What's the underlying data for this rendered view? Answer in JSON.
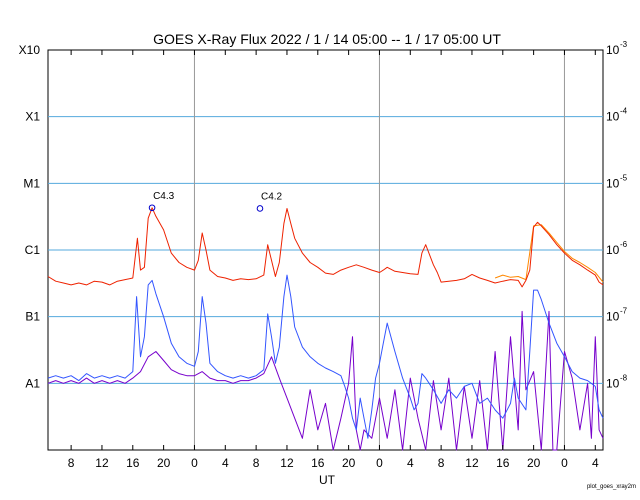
{
  "chart_data": {
    "type": "line",
    "title": "GOES X-Ray Flux   2022  /  1  /  14    05:00 --   1  /  17    05:00    UT",
    "xlabel": "UT",
    "footer_text": "plot_goes_xray2m",
    "x_range_hours": [
      0,
      72
    ],
    "x_tick_labels": [
      "8",
      "12",
      "16",
      "20",
      "0",
      "4",
      "8",
      "12",
      "16",
      "20",
      "0",
      "4",
      "8",
      "12",
      "16",
      "20",
      "0",
      "4"
    ],
    "x_tick_hours": [
      3,
      7,
      11,
      15,
      19,
      23,
      27,
      31,
      35,
      39,
      43,
      47,
      51,
      55,
      59,
      63,
      67,
      71
    ],
    "day_boundaries_hours": [
      19,
      43,
      67
    ],
    "y_scale": "log",
    "y_range": [
      1e-09,
      0.001
    ],
    "left_axis_labels": [
      {
        "label": "X10",
        "value": 0.001
      },
      {
        "label": "X1",
        "value": 0.0001
      },
      {
        "label": "M1",
        "value": 1e-05
      },
      {
        "label": "C1",
        "value": 1e-06
      },
      {
        "label": "B1",
        "value": 1e-07
      },
      {
        "label": "A1",
        "value": 1e-08
      }
    ],
    "right_axis_labels": [
      {
        "base": "10",
        "exp": "-3",
        "value": 0.001
      },
      {
        "base": "10",
        "exp": "-4",
        "value": 0.0001
      },
      {
        "base": "10",
        "exp": "-5",
        "value": 1e-05
      },
      {
        "base": "10",
        "exp": "-6",
        "value": 1e-06
      },
      {
        "base": "10",
        "exp": "-7",
        "value": 1e-07
      },
      {
        "base": "10",
        "exp": "-8",
        "value": 1e-08
      }
    ],
    "flare_annotations": [
      {
        "label": "C4.3",
        "hour": 13.5,
        "value": 4.3e-06
      },
      {
        "label": "C4.2",
        "hour": 27.5,
        "value": 4.2e-06
      }
    ],
    "colors": {
      "long_primary": "#ee2200",
      "long_secondary": "#ff8800",
      "short_primary": "#3355ff",
      "short_secondary": "#7700cc",
      "gridline": "#55aadd",
      "day_line": "#999999",
      "marker": "#0000cc"
    },
    "series": [
      {
        "key": "long_primary",
        "points": [
          [
            0,
            4e-07
          ],
          [
            1,
            3.4e-07
          ],
          [
            2,
            3.2e-07
          ],
          [
            3,
            3e-07
          ],
          [
            4,
            3.2e-07
          ],
          [
            5,
            3e-07
          ],
          [
            6,
            3.4e-07
          ],
          [
            7,
            3.3e-07
          ],
          [
            8,
            3e-07
          ],
          [
            9,
            3.4e-07
          ],
          [
            10,
            3.6e-07
          ],
          [
            11,
            3.8e-07
          ],
          [
            11.6,
            1.5e-06
          ],
          [
            12,
            5e-07
          ],
          [
            12.5,
            5.5e-07
          ],
          [
            13,
            3e-06
          ],
          [
            13.5,
            4.3e-06
          ],
          [
            14,
            3.2e-06
          ],
          [
            15,
            2e-06
          ],
          [
            16,
            9e-07
          ],
          [
            17,
            6.5e-07
          ],
          [
            18,
            5.5e-07
          ],
          [
            19,
            5e-07
          ],
          [
            19.5,
            7e-07
          ],
          [
            20,
            1.8e-06
          ],
          [
            20.5,
            1e-06
          ],
          [
            21,
            5e-07
          ],
          [
            22,
            4e-07
          ],
          [
            23,
            3.8e-07
          ],
          [
            24,
            3.5e-07
          ],
          [
            25,
            3.7e-07
          ],
          [
            26,
            3.6e-07
          ],
          [
            27,
            3.7e-07
          ],
          [
            28,
            4.2e-07
          ],
          [
            28.5,
            1.2e-06
          ],
          [
            29,
            7e-07
          ],
          [
            29.5,
            4e-07
          ],
          [
            30,
            6.5e-07
          ],
          [
            30.6,
            2.5e-06
          ],
          [
            31,
            4.2e-06
          ],
          [
            31.5,
            2.5e-06
          ],
          [
            32,
            1.5e-06
          ],
          [
            33,
            9e-07
          ],
          [
            34,
            6.5e-07
          ],
          [
            35,
            5.5e-07
          ],
          [
            36,
            4.5e-07
          ],
          [
            37,
            4.3e-07
          ],
          [
            38,
            5e-07
          ],
          [
            39,
            5.5e-07
          ],
          [
            40,
            6e-07
          ],
          [
            41,
            5.5e-07
          ],
          [
            42,
            5e-07
          ],
          [
            43,
            4.6e-07
          ],
          [
            43.5,
            5e-07
          ],
          [
            44,
            5.5e-07
          ],
          [
            45,
            4.8e-07
          ],
          [
            46,
            4.6e-07
          ],
          [
            47,
            4.4e-07
          ],
          [
            48,
            4.3e-07
          ],
          [
            48.5,
            9e-07
          ],
          [
            49,
            1.2e-06
          ],
          [
            50,
            6e-07
          ],
          [
            50.5,
            4.6e-07
          ],
          [
            51,
            3.3e-07
          ],
          [
            52,
            3.4e-07
          ],
          [
            53,
            3.5e-07
          ],
          [
            54,
            3.7e-07
          ],
          [
            55,
            4.3e-07
          ],
          [
            56,
            3.8e-07
          ],
          [
            57,
            3.5e-07
          ],
          [
            58,
            3.2e-07
          ],
          [
            59,
            3.4e-07
          ],
          [
            60,
            3.6e-07
          ],
          [
            61,
            3.5e-07
          ],
          [
            61.5,
            2.8e-07
          ],
          [
            62,
            3.5e-07
          ],
          [
            62.5,
            5e-07
          ],
          [
            63,
            2.2e-06
          ],
          [
            63.5,
            2.6e-06
          ],
          [
            64,
            2.3e-06
          ],
          [
            65,
            1.7e-06
          ],
          [
            66,
            1.2e-06
          ],
          [
            67,
            9e-07
          ],
          [
            68,
            7e-07
          ],
          [
            69,
            6e-07
          ],
          [
            70,
            5e-07
          ],
          [
            71,
            4.2e-07
          ],
          [
            71.5,
            3.3e-07
          ],
          [
            72,
            3e-07
          ]
        ]
      },
      {
        "key": "short_primary",
        "points": [
          [
            0,
            1.2e-08
          ],
          [
            1,
            1.3e-08
          ],
          [
            2,
            1.2e-08
          ],
          [
            3,
            1.3e-08
          ],
          [
            4,
            1.1e-08
          ],
          [
            5,
            1.4e-08
          ],
          [
            6,
            1.2e-08
          ],
          [
            7,
            1.3e-08
          ],
          [
            8,
            1.2e-08
          ],
          [
            9,
            1.3e-08
          ],
          [
            10,
            1.2e-08
          ],
          [
            11,
            1.5e-08
          ],
          [
            11.5,
            2e-07
          ],
          [
            12,
            2.5e-08
          ],
          [
            12.5,
            5e-08
          ],
          [
            13,
            3e-07
          ],
          [
            13.5,
            3.5e-07
          ],
          [
            14,
            2.2e-07
          ],
          [
            15,
            1e-07
          ],
          [
            16,
            4e-08
          ],
          [
            17,
            2.5e-08
          ],
          [
            18,
            2e-08
          ],
          [
            19,
            1.8e-08
          ],
          [
            19.5,
            3e-08
          ],
          [
            20,
            2e-07
          ],
          [
            20.5,
            8e-08
          ],
          [
            21,
            2e-08
          ],
          [
            22,
            1.5e-08
          ],
          [
            23,
            1.3e-08
          ],
          [
            24,
            1.2e-08
          ],
          [
            25,
            1.3e-08
          ],
          [
            26,
            1.2e-08
          ],
          [
            27,
            1.3e-08
          ],
          [
            28,
            1.6e-08
          ],
          [
            28.5,
            1.1e-07
          ],
          [
            29,
            5e-08
          ],
          [
            29.5,
            2e-08
          ],
          [
            30,
            3.5e-08
          ],
          [
            30.6,
            2e-07
          ],
          [
            31,
            4.2e-07
          ],
          [
            31.5,
            2e-07
          ],
          [
            32,
            7e-08
          ],
          [
            33,
            3.5e-08
          ],
          [
            34,
            2.5e-08
          ],
          [
            35,
            2e-08
          ],
          [
            36,
            1.7e-08
          ],
          [
            37,
            1.5e-08
          ],
          [
            38,
            1.3e-08
          ],
          [
            38.5,
            9e-09
          ],
          [
            39,
            6e-09
          ],
          [
            39.5,
            3e-09
          ],
          [
            40,
            2e-09
          ],
          [
            40.5,
            6e-09
          ],
          [
            41,
            3e-09
          ],
          [
            41.5,
            1.5e-09
          ],
          [
            42,
            4e-09
          ],
          [
            42.5,
            1.2e-08
          ],
          [
            43,
            2e-08
          ],
          [
            43.5,
            4e-08
          ],
          [
            44,
            8e-08
          ],
          [
            45,
            3e-08
          ],
          [
            46,
            1.2e-08
          ],
          [
            47,
            6e-09
          ],
          [
            47.5,
            4e-09
          ],
          [
            48,
            5e-09
          ],
          [
            48.5,
            1.4e-08
          ],
          [
            49,
            1.2e-08
          ],
          [
            50,
            8e-09
          ],
          [
            51,
            5e-09
          ],
          [
            52,
            8e-09
          ],
          [
            53,
            6e-09
          ],
          [
            54,
            9e-09
          ],
          [
            55,
            1e-08
          ],
          [
            56,
            5e-09
          ],
          [
            57,
            6e-09
          ],
          [
            58,
            4e-09
          ],
          [
            59,
            3e-09
          ],
          [
            60,
            5e-09
          ],
          [
            60.5,
            1.2e-08
          ],
          [
            61,
            6e-09
          ],
          [
            62,
            4e-09
          ],
          [
            62.5,
            3e-08
          ],
          [
            63,
            2.5e-07
          ],
          [
            63.5,
            2.5e-07
          ],
          [
            64,
            1.8e-07
          ],
          [
            65,
            8e-08
          ],
          [
            66,
            4e-08
          ],
          [
            67,
            2.5e-08
          ],
          [
            68,
            1.5e-08
          ],
          [
            69,
            1.2e-08
          ],
          [
            70,
            1.1e-08
          ],
          [
            71,
            9e-09
          ],
          [
            71.5,
            4e-09
          ],
          [
            72,
            3e-09
          ]
        ]
      },
      {
        "key": "short_secondary",
        "points": [
          [
            0,
            1e-08
          ],
          [
            1,
            1.1e-08
          ],
          [
            2,
            1e-08
          ],
          [
            3,
            1.1e-08
          ],
          [
            4,
            1e-08
          ],
          [
            5,
            1.2e-08
          ],
          [
            6,
            1e-08
          ],
          [
            7,
            1.1e-08
          ],
          [
            8,
            1e-08
          ],
          [
            9,
            1.1e-08
          ],
          [
            10,
            1e-08
          ],
          [
            11,
            1.2e-08
          ],
          [
            12,
            1.5e-08
          ],
          [
            13,
            2.5e-08
          ],
          [
            14,
            3e-08
          ],
          [
            15,
            2.2e-08
          ],
          [
            16,
            1.6e-08
          ],
          [
            17,
            1.4e-08
          ],
          [
            18,
            1.3e-08
          ],
          [
            19,
            1.3e-08
          ],
          [
            20,
            1.5e-08
          ],
          [
            21,
            1.2e-08
          ],
          [
            22,
            1.1e-08
          ],
          [
            23,
            1.1e-08
          ],
          [
            24,
            1e-08
          ],
          [
            25,
            1.1e-08
          ],
          [
            26,
            1.1e-08
          ],
          [
            27,
            1.2e-08
          ],
          [
            28,
            1.4e-08
          ],
          [
            29,
            2.5e-08
          ],
          [
            30,
            1.2e-08
          ],
          [
            31,
            6e-09
          ],
          [
            32,
            3e-09
          ],
          [
            33,
            1.5e-09
          ],
          [
            34,
            8e-09
          ],
          [
            35,
            2e-09
          ],
          [
            36,
            5e-09
          ],
          [
            37,
            1e-09
          ],
          [
            38,
            3e-09
          ],
          [
            39,
            1e-08
          ],
          [
            39.5,
            5e-08
          ],
          [
            40,
            2e-09
          ],
          [
            40.5,
            1e-09
          ],
          [
            41,
            2e-09
          ],
          [
            42,
            1.5e-09
          ],
          [
            43,
            6e-09
          ],
          [
            44,
            1.5e-09
          ],
          [
            45,
            8e-09
          ],
          [
            46,
            1e-09
          ],
          [
            47,
            1.2e-08
          ],
          [
            48,
            3e-09
          ],
          [
            49,
            1e-09
          ],
          [
            50,
            1.1e-08
          ],
          [
            51,
            2e-09
          ],
          [
            52,
            1.2e-08
          ],
          [
            53,
            1e-09
          ],
          [
            54,
            9e-09
          ],
          [
            55,
            1.5e-09
          ],
          [
            56,
            1.1e-08
          ],
          [
            57,
            1e-09
          ],
          [
            58,
            3e-08
          ],
          [
            59,
            1e-09
          ],
          [
            60,
            5e-08
          ],
          [
            61,
            2e-09
          ],
          [
            61.5,
            1.2e-07
          ],
          [
            62,
            8e-09
          ],
          [
            63,
            1.5e-08
          ],
          [
            64,
            1e-09
          ],
          [
            65,
            1.2e-07
          ],
          [
            65.5,
            1e-09
          ],
          [
            66,
            1e-09
          ],
          [
            67,
            3e-08
          ],
          [
            68,
            1.2e-08
          ],
          [
            69,
            2e-09
          ],
          [
            70,
            1e-08
          ],
          [
            70.5,
            1.5e-09
          ],
          [
            71,
            5e-08
          ],
          [
            71.5,
            2e-09
          ],
          [
            72,
            1.5e-09
          ]
        ]
      },
      {
        "key": "long_secondary",
        "points": [
          [
            58,
            3.8e-07
          ],
          [
            59,
            4.2e-07
          ],
          [
            60,
            3.9e-07
          ],
          [
            61,
            4e-07
          ],
          [
            62,
            3.6e-07
          ],
          [
            63,
            2.3e-06
          ],
          [
            64,
            2.4e-06
          ],
          [
            65,
            1.8e-06
          ],
          [
            66,
            1.3e-06
          ],
          [
            67,
            9.5e-07
          ],
          [
            68,
            7.5e-07
          ],
          [
            69,
            6.5e-07
          ],
          [
            70,
            5.5e-07
          ],
          [
            71,
            4.6e-07
          ],
          [
            72,
            3.3e-07
          ]
        ]
      }
    ]
  }
}
